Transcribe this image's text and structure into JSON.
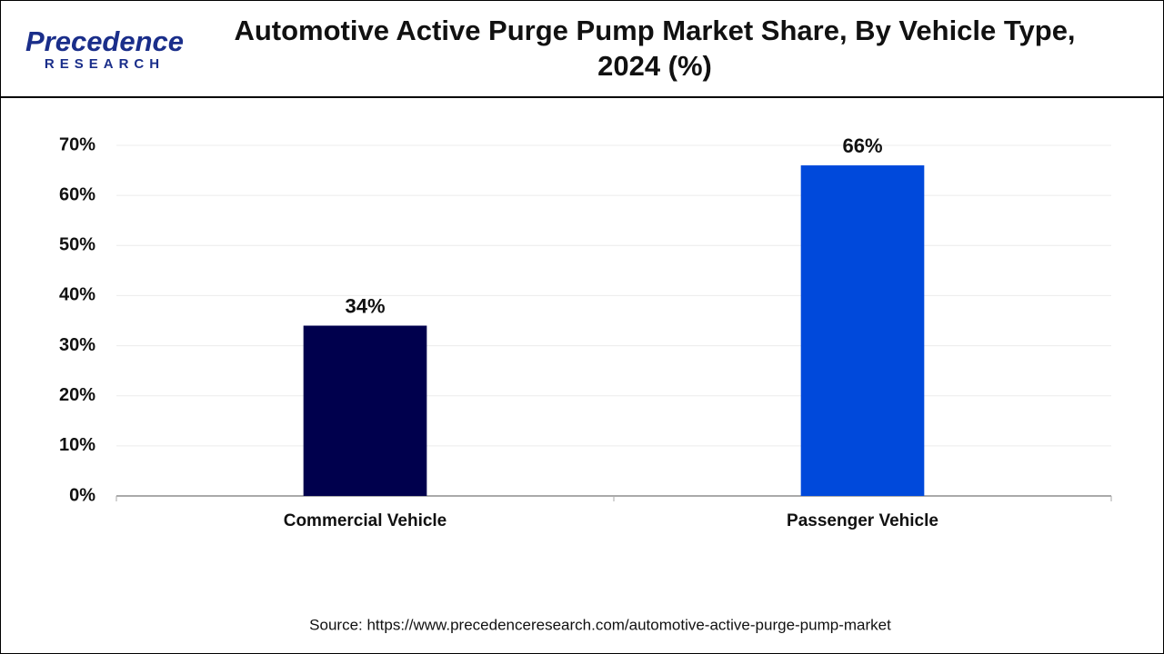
{
  "logo": {
    "name": "Precedence",
    "tagline": "RESEARCH"
  },
  "chart_data": {
    "type": "bar",
    "title": "Automotive Active Purge Pump Market Share, By Vehicle Type, 2024 (%)",
    "categories": [
      "Commercial Vehicle",
      "Passenger Vehicle"
    ],
    "values": [
      34,
      66
    ],
    "value_labels": [
      "34%",
      "66%"
    ],
    "colors": [
      "#00004d",
      "#0049db"
    ],
    "ylim": [
      0,
      70
    ],
    "yticks": [
      {
        "value": 0,
        "label": "0%"
      },
      {
        "value": 10,
        "label": "10%"
      },
      {
        "value": 20,
        "label": "20%"
      },
      {
        "value": 30,
        "label": "30%"
      },
      {
        "value": 40,
        "label": "40%"
      },
      {
        "value": 50,
        "label": "50%"
      },
      {
        "value": 60,
        "label": "60%"
      },
      {
        "value": 70,
        "label": "70%"
      }
    ],
    "grid": true,
    "source": "Source: https://www.precedenceresearch.com/automotive-active-purge-pump-market"
  }
}
